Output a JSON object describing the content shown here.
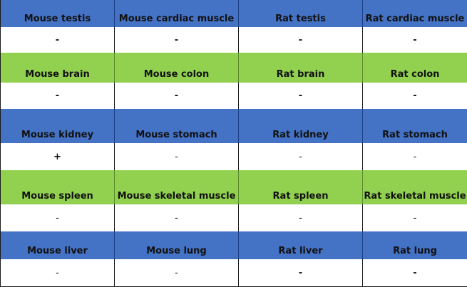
{
  "colors": {
    "header_blue": "#4472c4",
    "header_green": "#92d050",
    "value_bg": "#ffffff"
  },
  "rows": [
    {
      "kind": "header",
      "color": "blue",
      "cells": [
        "Mouse testis",
        "Mouse cardiac muscle",
        "Rat testis",
        "Rat cardiac muscle"
      ]
    },
    {
      "kind": "value",
      "cells": [
        "-",
        "-",
        "-",
        "-"
      ],
      "weights": [
        "heavy",
        "heavy",
        "heavy",
        "heavy"
      ]
    },
    {
      "kind": "header",
      "color": "green",
      "cells": [
        "Mouse brain",
        "Mouse colon",
        "Rat brain",
        "Rat colon"
      ]
    },
    {
      "kind": "value",
      "cells": [
        "-",
        "-",
        "-",
        "-"
      ],
      "weights": [
        "heavy",
        "heavy",
        "heavy",
        "heavy"
      ]
    },
    {
      "kind": "header",
      "color": "blue",
      "cells": [
        "Mouse kidney",
        "Mouse stomach",
        "Rat kidney",
        "Rat stomach"
      ]
    },
    {
      "kind": "value",
      "cells": [
        "+",
        "-",
        "-",
        "-"
      ],
      "weights": [
        "heavy",
        "light",
        "light",
        "light"
      ]
    },
    {
      "kind": "header",
      "color": "green",
      "cells": [
        "Mouse spleen",
        "Mouse skeletal muscle",
        "Rat spleen",
        "Rat skeletal muscle"
      ]
    },
    {
      "kind": "value",
      "cells": [
        "-",
        "-",
        "-",
        "-"
      ],
      "weights": [
        "light",
        "light",
        "light",
        "light"
      ]
    },
    {
      "kind": "header",
      "color": "blue",
      "cells": [
        "Mouse liver",
        "Mouse lung",
        "Rat liver",
        "Rat lung"
      ]
    },
    {
      "kind": "value",
      "cells": [
        "-",
        "-",
        "-",
        "-"
      ],
      "weights": [
        "light",
        "light",
        "heavy",
        "heavy"
      ]
    }
  ]
}
